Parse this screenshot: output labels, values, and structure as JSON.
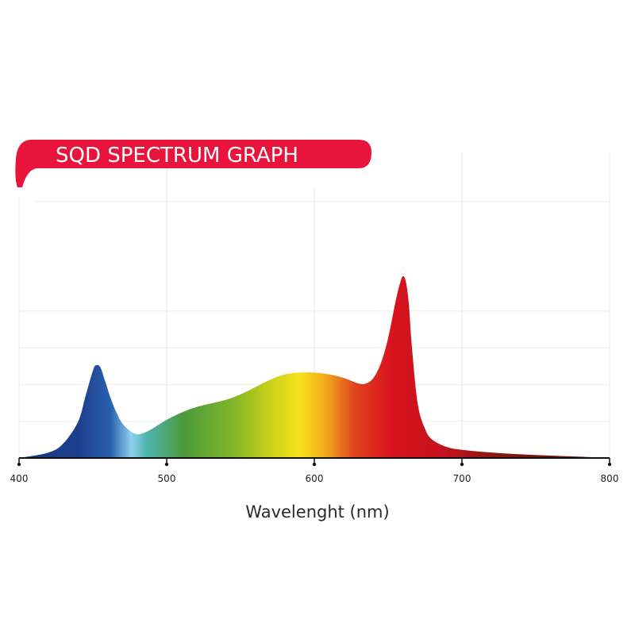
{
  "chart_data": {
    "type": "area",
    "title": "SQD SPECTRUM GRAPH",
    "xlabel": "Wavelenght (nm)",
    "ylabel": "",
    "xlim": [
      400,
      800
    ],
    "ylim": [
      0,
      1
    ],
    "x_ticks": [
      400,
      500,
      600,
      700,
      800
    ],
    "x_tick_labels": [
      "400",
      "500",
      "600",
      "700",
      "800"
    ],
    "grid": true,
    "series": [
      {
        "x": [
          400,
          420,
          430,
          440,
          445,
          450,
          452,
          455,
          458,
          462,
          466,
          470,
          475,
          480,
          485,
          490,
          500,
          510,
          520,
          530,
          540,
          550,
          560,
          570,
          580,
          590,
          600,
          610,
          620,
          630,
          635,
          640,
          645,
          650,
          655,
          658,
          660,
          662,
          664,
          666,
          670,
          675,
          680,
          690,
          700,
          720,
          740,
          760,
          780,
          800
        ],
        "values": [
          0,
          0.03,
          0.08,
          0.2,
          0.34,
          0.48,
          0.51,
          0.5,
          0.43,
          0.33,
          0.25,
          0.19,
          0.15,
          0.13,
          0.14,
          0.16,
          0.21,
          0.25,
          0.28,
          0.3,
          0.32,
          0.35,
          0.39,
          0.43,
          0.46,
          0.47,
          0.47,
          0.46,
          0.44,
          0.41,
          0.41,
          0.44,
          0.52,
          0.66,
          0.86,
          0.96,
          1.0,
          0.97,
          0.85,
          0.62,
          0.3,
          0.16,
          0.1,
          0.06,
          0.045,
          0.03,
          0.02,
          0.013,
          0.007,
          0
        ]
      }
    ],
    "spectrum_colors": [
      {
        "offset": 0.0,
        "color": "#1a3a7a"
      },
      {
        "offset": 0.1,
        "color": "#1c3f8c"
      },
      {
        "offset": 0.155,
        "color": "#2a5fae"
      },
      {
        "offset": 0.19,
        "color": "#8fd0ee"
      },
      {
        "offset": 0.215,
        "color": "#4fb6b0"
      },
      {
        "offset": 0.28,
        "color": "#4c9a3a"
      },
      {
        "offset": 0.36,
        "color": "#7fb52a"
      },
      {
        "offset": 0.43,
        "color": "#cfd21a"
      },
      {
        "offset": 0.475,
        "color": "#f7e21c"
      },
      {
        "offset": 0.52,
        "color": "#f2a81c"
      },
      {
        "offset": 0.57,
        "color": "#e0401e"
      },
      {
        "offset": 0.63,
        "color": "#d8141e"
      },
      {
        "offset": 0.72,
        "color": "#c4121c"
      },
      {
        "offset": 0.8,
        "color": "#8e1612"
      },
      {
        "offset": 0.9,
        "color": "#6a1410"
      },
      {
        "offset": 1.0,
        "color": "#5a1412"
      }
    ],
    "accent_color": "#e8143c"
  }
}
